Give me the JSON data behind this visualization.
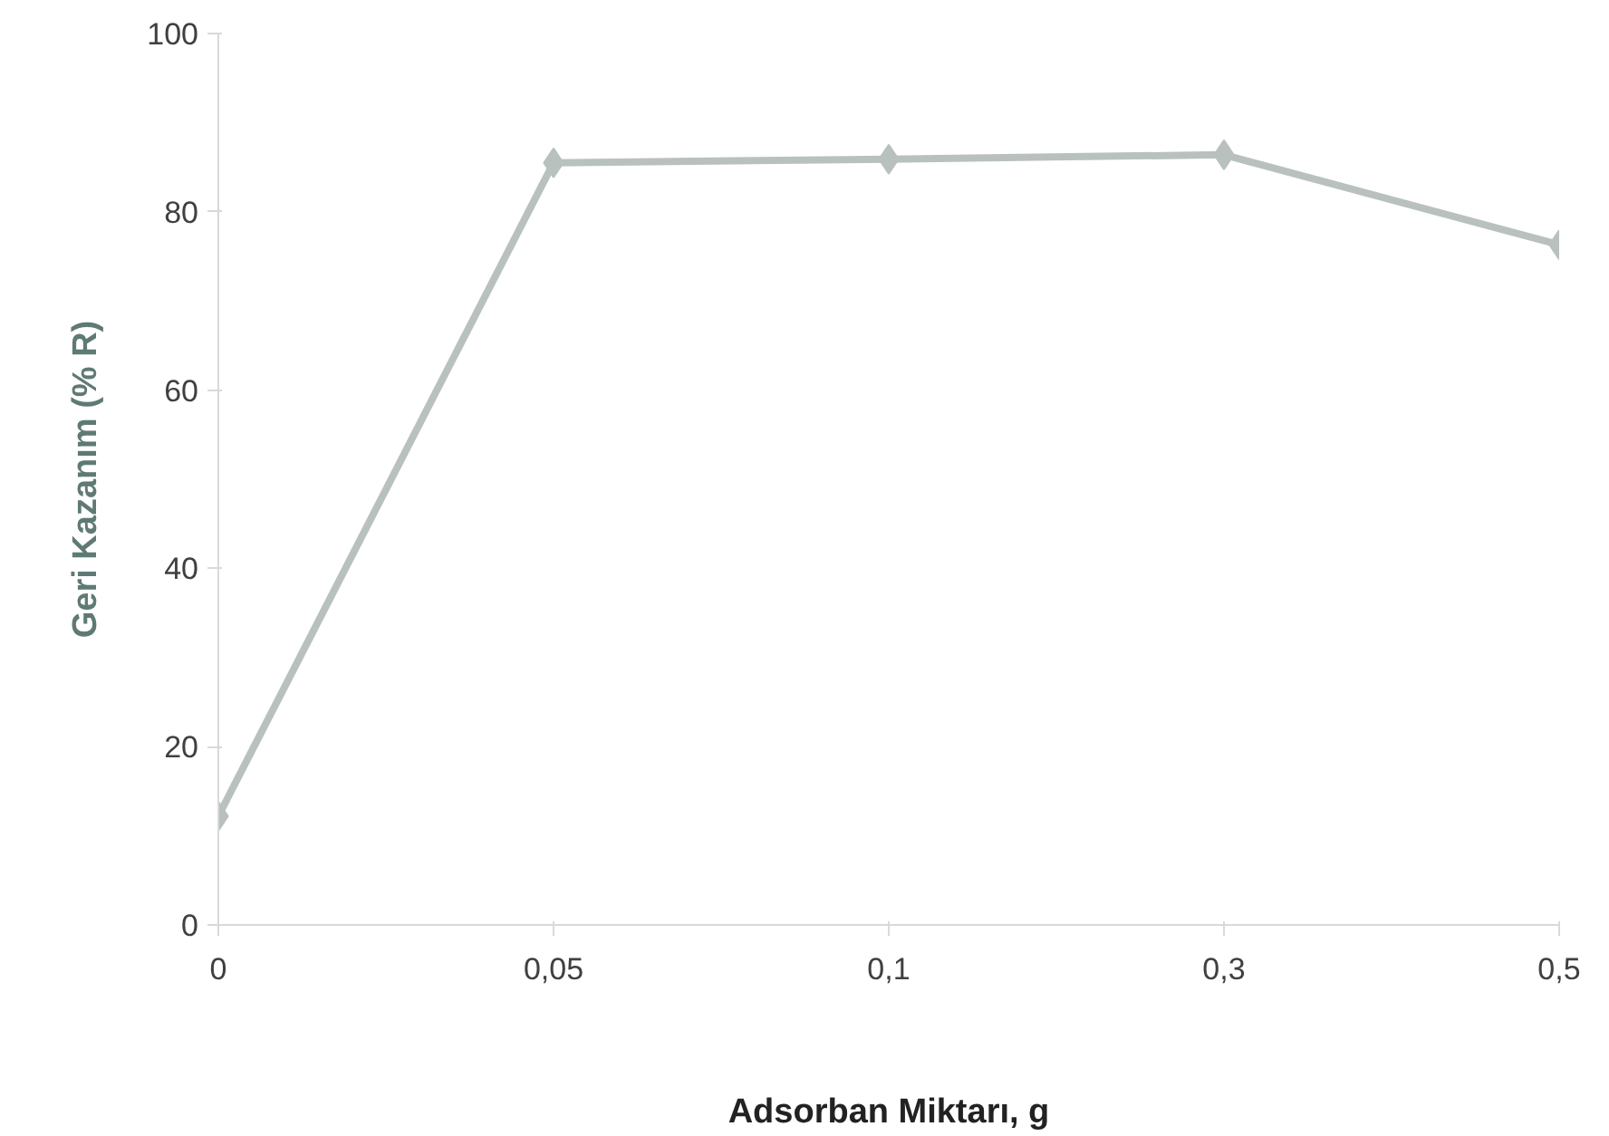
{
  "chart_data": {
    "type": "line",
    "xlabel": "Adsorban Miktarı, g",
    "ylabel": "Geri Kazanım (% R)",
    "categories": [
      "0",
      "0,05",
      "0,1",
      "0,3",
      "0,5"
    ],
    "series": [
      {
        "color": "#b9c1bf",
        "values": [
          12.2,
          85.5,
          85.9,
          86.4,
          76.3
        ]
      }
    ],
    "ylim": [
      0,
      100
    ],
    "yticks": [
      0,
      20,
      40,
      60,
      80,
      100
    ],
    "grid": false,
    "marker": "diamond",
    "line_style": "solid"
  }
}
